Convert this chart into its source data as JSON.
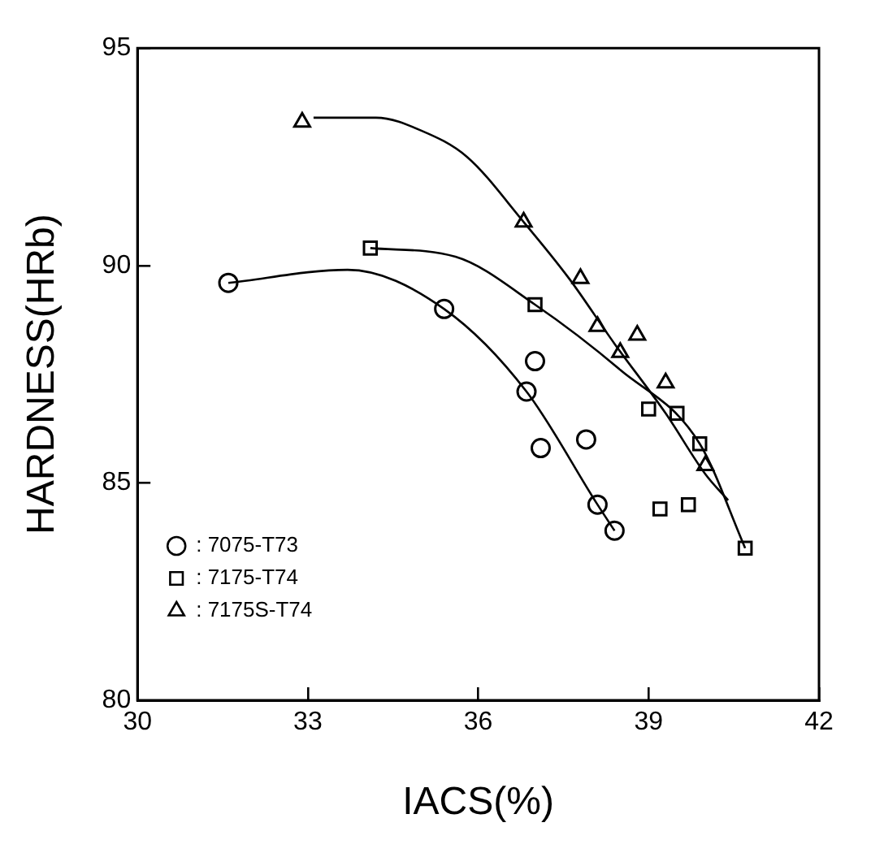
{
  "chart_data": {
    "type": "scatter",
    "xlabel": "IACS(%)",
    "ylabel": "HARDNESS(HRb)",
    "xlim": [
      30,
      42
    ],
    "xticks": [
      30,
      33,
      36,
      39,
      42
    ],
    "ylim": [
      80,
      95
    ],
    "yticks": [
      80,
      85,
      90,
      95
    ],
    "grid": false,
    "legend": "bottom left",
    "series": [
      {
        "name": ": 7075-T73",
        "color": "#000000",
        "marker": "circle",
        "x": [
          31.6,
          35.4,
          37.0,
          36.85,
          37.1,
          37.9,
          38.1,
          38.4
        ],
        "values": [
          89.6,
          89.0,
          87.8,
          87.1,
          85.8,
          86.0,
          84.5,
          83.9
        ]
      },
      {
        "name": ": 7175-T74",
        "color": "#000000",
        "marker": "square",
        "x": [
          34.1,
          37.0,
          39.0,
          39.5,
          39.9,
          39.2,
          39.7,
          40.7
        ],
        "values": [
          90.4,
          89.1,
          86.7,
          86.6,
          85.9,
          84.4,
          84.5,
          83.5
        ]
      },
      {
        "name": ": 7175S-T74",
        "color": "#000000",
        "marker": "triangle",
        "x": [
          32.9,
          36.8,
          37.8,
          38.1,
          38.8,
          38.5,
          39.3,
          40.0
        ],
        "values": [
          93.3,
          91.0,
          89.7,
          88.6,
          88.4,
          88.0,
          87.3,
          85.4
        ]
      },
      {
        "type": "line",
        "color": "#000000",
        "marker": "none",
        "line_style": "solid",
        "x": [
          31.6,
          33.7,
          35.4,
          36.85,
          38.1,
          38.4
        ],
        "values": [
          89.6,
          89.9,
          89.0,
          87.1,
          84.5,
          83.9
        ]
      },
      {
        "type": "line",
        "color": "#000000",
        "marker": "none",
        "line_style": "solid",
        "x": [
          34.1,
          35.6,
          37.0,
          38.5,
          39.9,
          40.7
        ],
        "values": [
          90.4,
          90.2,
          89.1,
          87.6,
          85.9,
          83.5
        ]
      },
      {
        "type": "line",
        "color": "#000000",
        "marker": "none",
        "line_style": "solid",
        "x": [
          33.1,
          34.2,
          35.0,
          35.8,
          36.8,
          37.6,
          38.4,
          39.3,
          40.0,
          40.4
        ],
        "values": [
          93.4,
          93.4,
          93.1,
          92.5,
          91.0,
          89.7,
          88.2,
          86.6,
          85.2,
          84.6
        ]
      }
    ]
  }
}
